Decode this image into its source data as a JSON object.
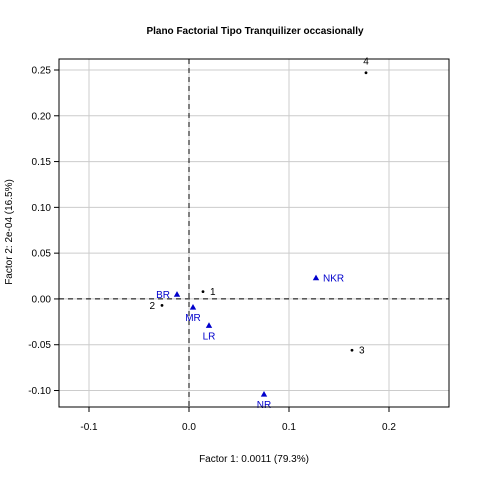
{
  "chart_data": {
    "type": "scatter",
    "title": "Plano Factorial Tipo Tranquilizer occasionally",
    "xlabel": "Factor 1: 0.0011 (79.3%)",
    "ylabel": "Factor 2: 2e-04 (16.5%)",
    "xlim": [
      -0.13,
      0.26
    ],
    "ylim": [
      -0.118,
      0.262
    ],
    "x_ticks": [
      -0.1,
      0.0,
      0.1,
      0.2
    ],
    "x_tick_labels": [
      "-0.1",
      "0.0",
      "0.1",
      "0.2"
    ],
    "y_ticks": [
      -0.1,
      -0.05,
      0.0,
      0.05,
      0.1,
      0.15,
      0.2,
      0.25
    ],
    "y_tick_labels": [
      "-0.10",
      "-0.05",
      "0.00",
      "0.05",
      "0.10",
      "0.15",
      "0.20",
      "0.25"
    ],
    "grid": true,
    "reference_lines": {
      "x": 0,
      "y": 0,
      "style": "dashed"
    },
    "colors": {
      "row_points": "#000000",
      "column_points": "#0000cc",
      "grid": "#cccccc"
    },
    "row_points": [
      {
        "label": "1",
        "x": 0.014,
        "y": 0.008,
        "label_pos": "right"
      },
      {
        "label": "2",
        "x": -0.027,
        "y": -0.007,
        "label_pos": "left"
      },
      {
        "label": "3",
        "x": 0.163,
        "y": -0.056,
        "label_pos": "right"
      },
      {
        "label": "4",
        "x": 0.177,
        "y": 0.247,
        "label_pos": "above"
      }
    ],
    "column_points": [
      {
        "label": "BR",
        "x": -0.012,
        "y": 0.005,
        "label_pos": "left"
      },
      {
        "label": "MR",
        "x": 0.004,
        "y": -0.009,
        "label_pos": "below"
      },
      {
        "label": "LR",
        "x": 0.02,
        "y": -0.029,
        "label_pos": "below"
      },
      {
        "label": "NKR",
        "x": 0.127,
        "y": 0.023,
        "label_pos": "right"
      },
      {
        "label": "NR",
        "x": 0.075,
        "y": -0.104,
        "label_pos": "below"
      }
    ]
  }
}
